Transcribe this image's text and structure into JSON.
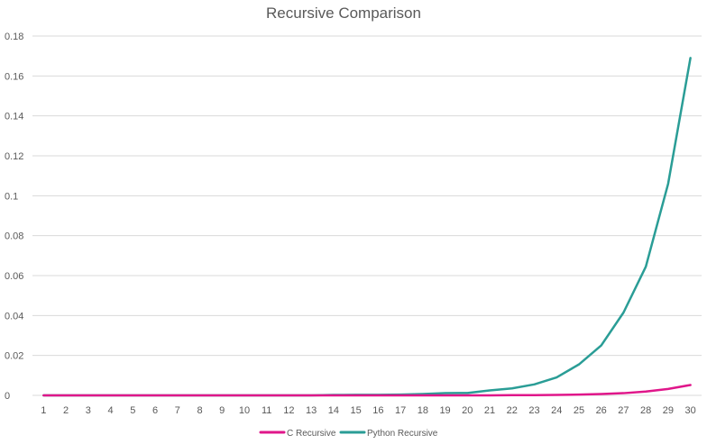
{
  "chart_data": {
    "type": "line",
    "title": "Recursive Comparison",
    "xlabel": "",
    "ylabel": "",
    "x": [
      1,
      2,
      3,
      4,
      5,
      6,
      7,
      8,
      9,
      10,
      11,
      12,
      13,
      14,
      15,
      16,
      17,
      18,
      19,
      20,
      21,
      22,
      23,
      24,
      25,
      26,
      27,
      28,
      29,
      30
    ],
    "ylim": [
      0,
      0.18
    ],
    "yticks": [
      "0",
      "0.02",
      "0.04",
      "0.06",
      "0.08",
      "0.1",
      "0.12",
      "0.14",
      "0.16",
      "0.18"
    ],
    "grid": true,
    "legend_position": "bottom",
    "series": [
      {
        "name": "C Recursive",
        "color": "#e0168a",
        "values": [
          0,
          0,
          0,
          0,
          0,
          0,
          0,
          0,
          0,
          0,
          0,
          0,
          0,
          0,
          0,
          0,
          0,
          0,
          0,
          0,
          0,
          0.0001,
          0.0001,
          0.0002,
          0.0004,
          0.0007,
          0.0011,
          0.0019,
          0.0032,
          0.0052
        ]
      },
      {
        "name": "Python Recursive",
        "color": "#2a9d96",
        "values": [
          0,
          0,
          0,
          0,
          0,
          0,
          0,
          0,
          0,
          0,
          0,
          0,
          0,
          0.0002,
          0.0003,
          0.0003,
          0.0004,
          0.0007,
          0.0011,
          0.0012,
          0.0025,
          0.0035,
          0.0055,
          0.009,
          0.0155,
          0.025,
          0.0415,
          0.0645,
          0.106,
          0.169
        ]
      }
    ]
  }
}
